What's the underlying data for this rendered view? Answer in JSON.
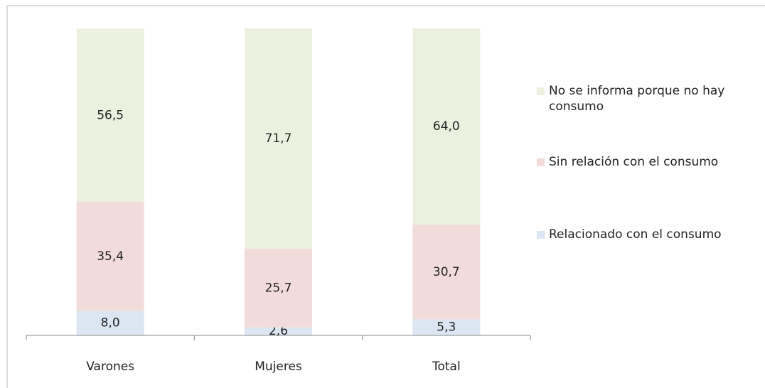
{
  "chart_data": {
    "type": "stacked-bar",
    "categories": [
      "Varones",
      "Mujeres",
      "Total"
    ],
    "series": [
      {
        "name": "Relacionado con el consumo",
        "color": "#dce6f2",
        "values": [
          8.0,
          2.6,
          5.3
        ],
        "value_labels": [
          "8,0",
          "2,6",
          "5,3"
        ]
      },
      {
        "name": "Sin relación con el consumo",
        "color": "#f2dcdb",
        "values": [
          35.4,
          25.7,
          30.7
        ],
        "value_labels": [
          "35,4",
          "25,7",
          "30,7"
        ]
      },
      {
        "name": "No se informa porque no hay consumo",
        "color": "#ebf1de",
        "values": [
          56.5,
          71.7,
          64.0
        ],
        "value_labels": [
          "56,5",
          "71,7",
          "64,0"
        ]
      }
    ]
  }
}
